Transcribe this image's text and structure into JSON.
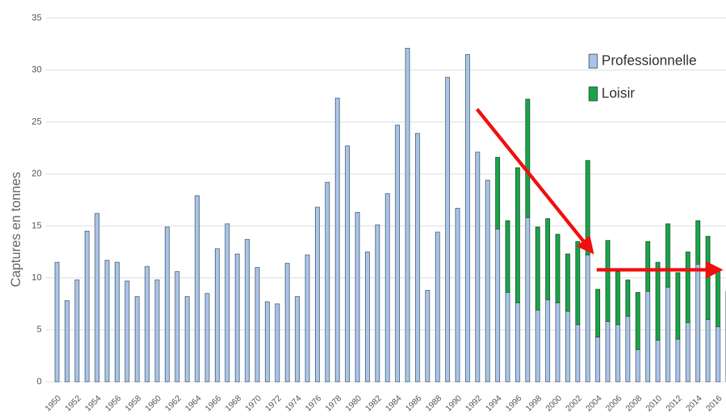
{
  "chart_data": {
    "type": "stacked-bar",
    "y_label": "Captures en tonnes",
    "categories": [
      "1950",
      null,
      "1952",
      null,
      "1954",
      null,
      "1956",
      null,
      "1958",
      null,
      "1960",
      null,
      "1962",
      null,
      "1964",
      null,
      "1966",
      null,
      "1968",
      null,
      "1970",
      null,
      "1972",
      null,
      "1974",
      null,
      "1976",
      null,
      "1978",
      null,
      "1980",
      null,
      "1982",
      null,
      "1984",
      null,
      "1986",
      null,
      "1988",
      null,
      "1990",
      null,
      "1992",
      null,
      "1994",
      null,
      "1996",
      null,
      "1998",
      null,
      "2000",
      null,
      "2002",
      null,
      "2004",
      null,
      "2006",
      null,
      "2008",
      null,
      "2010",
      null,
      "2012",
      null,
      "2014",
      null,
      "2016",
      null
    ],
    "series": [
      {
        "name": "Professionnelle",
        "color": "#a9c4e4",
        "values": [
          11.5,
          7.8,
          9.8,
          14.5,
          16.2,
          11.7,
          11.5,
          9.7,
          8.2,
          11.1,
          9.8,
          14.9,
          10.6,
          8.2,
          17.9,
          8.5,
          12.8,
          15.2,
          12.3,
          13.7,
          11.0,
          7.7,
          7.5,
          11.4,
          8.2,
          12.2,
          16.8,
          19.2,
          27.3,
          22.7,
          16.3,
          12.5,
          15.1,
          18.1,
          24.7,
          32.1,
          23.9,
          8.8,
          14.4,
          29.3,
          16.7,
          31.5,
          22.1,
          19.4,
          14.7,
          8.6,
          7.6,
          15.8,
          6.9,
          7.9,
          7.6,
          6.8,
          5.5,
          12.2,
          4.3,
          5.8,
          5.5,
          6.3,
          3.1,
          8.7,
          4.0,
          9.1,
          4.1,
          5.7,
          11.3,
          6.0,
          5.3,
          8.7
        ]
      },
      {
        "name": "Loisir",
        "color": "#1aa34a",
        "values": [
          null,
          null,
          null,
          null,
          null,
          null,
          null,
          null,
          null,
          null,
          null,
          null,
          null,
          null,
          null,
          null,
          null,
          null,
          null,
          null,
          null,
          null,
          null,
          null,
          null,
          null,
          null,
          null,
          null,
          null,
          null,
          null,
          null,
          null,
          null,
          null,
          null,
          null,
          null,
          null,
          null,
          null,
          null,
          null,
          6.9,
          6.9,
          13.0,
          11.4,
          8.0,
          7.8,
          6.6,
          5.5,
          8.0,
          9.1,
          4.6,
          7.8,
          5.1,
          3.5,
          5.5,
          4.8,
          7.5,
          6.1,
          6.4,
          6.8,
          4.2,
          8.0,
          5.4,
          null
        ]
      }
    ],
    "ylim": [
      0,
      35
    ],
    "yticks": [
      0,
      5,
      10,
      15,
      20,
      25,
      30,
      35
    ],
    "grid": true
  }
}
